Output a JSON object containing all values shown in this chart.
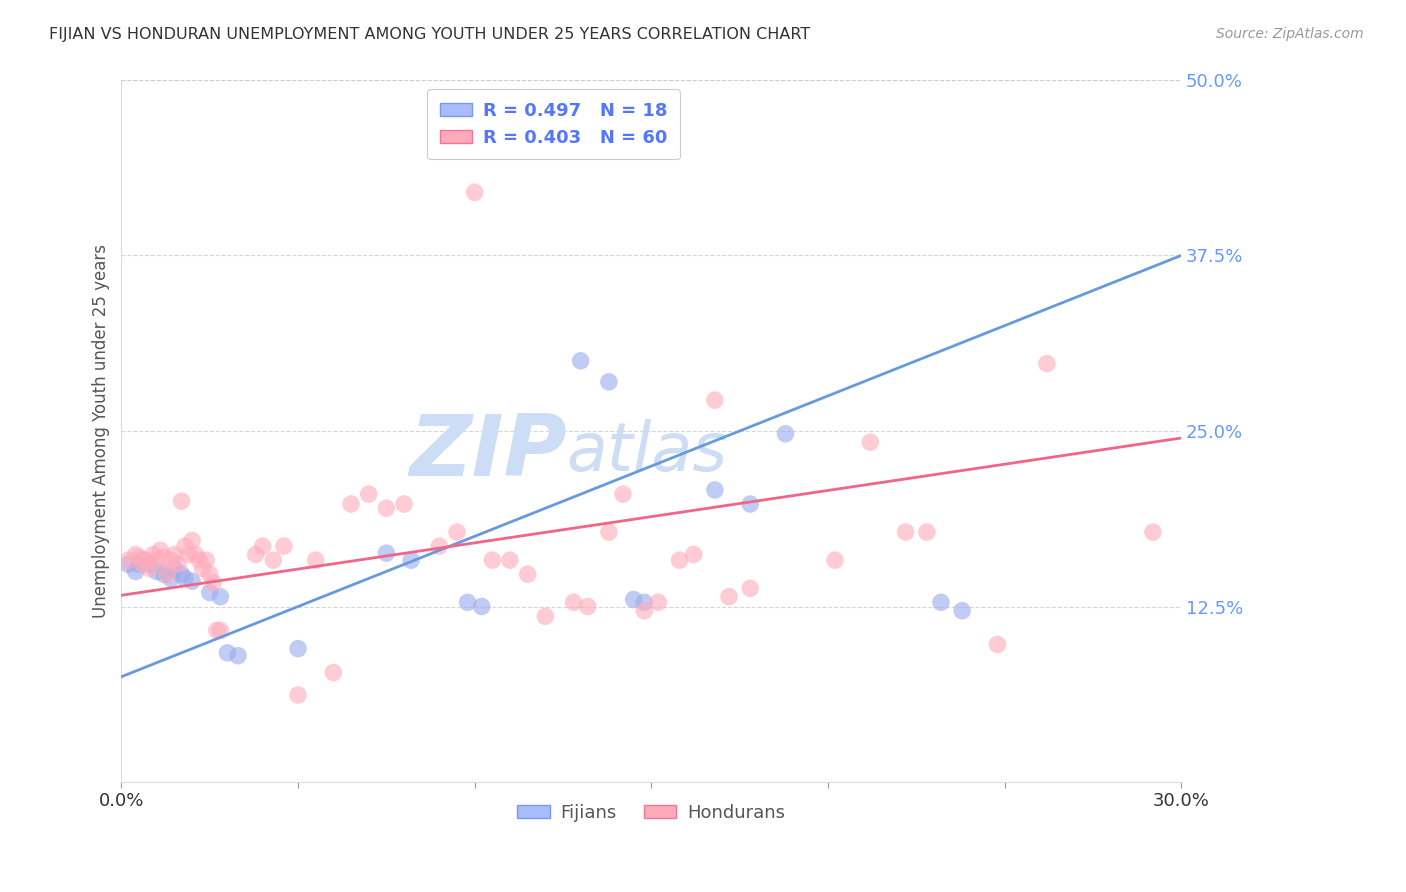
{
  "title": "FIJIAN VS HONDURAN UNEMPLOYMENT AMONG YOUTH UNDER 25 YEARS CORRELATION CHART",
  "source": "Source: ZipAtlas.com",
  "ylabel_label": "Unemployment Among Youth under 25 years",
  "xlim": [
    0.0,
    0.3
  ],
  "ylim": [
    0.0,
    0.5
  ],
  "xticks": [
    0.0,
    0.05,
    0.1,
    0.15,
    0.2,
    0.25,
    0.3
  ],
  "yticks": [
    0.0,
    0.125,
    0.25,
    0.375,
    0.5
  ],
  "xtick_labels": [
    "0.0%",
    "",
    "",
    "",
    "",
    "",
    "30.0%"
  ],
  "ytick_labels": [
    "",
    "12.5%",
    "25.0%",
    "37.5%",
    "50.0%"
  ],
  "fijians_color": "#99aaee",
  "hondurans_color": "#ffaabb",
  "fijians_scatter": [
    [
      0.002,
      0.155
    ],
    [
      0.004,
      0.15
    ],
    [
      0.005,
      0.155
    ],
    [
      0.006,
      0.158
    ],
    [
      0.008,
      0.155
    ],
    [
      0.01,
      0.15
    ],
    [
      0.012,
      0.148
    ],
    [
      0.014,
      0.145
    ],
    [
      0.015,
      0.152
    ],
    [
      0.017,
      0.148
    ],
    [
      0.018,
      0.145
    ],
    [
      0.02,
      0.143
    ],
    [
      0.025,
      0.135
    ],
    [
      0.028,
      0.132
    ],
    [
      0.03,
      0.092
    ],
    [
      0.033,
      0.09
    ],
    [
      0.05,
      0.095
    ],
    [
      0.075,
      0.163
    ],
    [
      0.082,
      0.158
    ],
    [
      0.098,
      0.128
    ],
    [
      0.102,
      0.125
    ],
    [
      0.13,
      0.3
    ],
    [
      0.138,
      0.285
    ],
    [
      0.145,
      0.13
    ],
    [
      0.148,
      0.128
    ],
    [
      0.168,
      0.208
    ],
    [
      0.178,
      0.198
    ],
    [
      0.188,
      0.248
    ],
    [
      0.232,
      0.128
    ],
    [
      0.238,
      0.122
    ]
  ],
  "hondurans_scatter": [
    [
      0.002,
      0.158
    ],
    [
      0.004,
      0.162
    ],
    [
      0.005,
      0.16
    ],
    [
      0.006,
      0.155
    ],
    [
      0.007,
      0.158
    ],
    [
      0.008,
      0.152
    ],
    [
      0.009,
      0.162
    ],
    [
      0.01,
      0.158
    ],
    [
      0.011,
      0.165
    ],
    [
      0.012,
      0.16
    ],
    [
      0.013,
      0.148
    ],
    [
      0.014,
      0.158
    ],
    [
      0.015,
      0.162
    ],
    [
      0.016,
      0.155
    ],
    [
      0.017,
      0.2
    ],
    [
      0.018,
      0.168
    ],
    [
      0.019,
      0.162
    ],
    [
      0.02,
      0.172
    ],
    [
      0.021,
      0.162
    ],
    [
      0.022,
      0.158
    ],
    [
      0.023,
      0.152
    ],
    [
      0.024,
      0.158
    ],
    [
      0.025,
      0.148
    ],
    [
      0.026,
      0.142
    ],
    [
      0.027,
      0.108
    ],
    [
      0.028,
      0.108
    ],
    [
      0.038,
      0.162
    ],
    [
      0.04,
      0.168
    ],
    [
      0.043,
      0.158
    ],
    [
      0.046,
      0.168
    ],
    [
      0.05,
      0.062
    ],
    [
      0.055,
      0.158
    ],
    [
      0.06,
      0.078
    ],
    [
      0.065,
      0.198
    ],
    [
      0.07,
      0.205
    ],
    [
      0.075,
      0.195
    ],
    [
      0.08,
      0.198
    ],
    [
      0.09,
      0.168
    ],
    [
      0.095,
      0.178
    ],
    [
      0.1,
      0.42
    ],
    [
      0.105,
      0.158
    ],
    [
      0.11,
      0.158
    ],
    [
      0.115,
      0.148
    ],
    [
      0.12,
      0.118
    ],
    [
      0.128,
      0.128
    ],
    [
      0.132,
      0.125
    ],
    [
      0.138,
      0.178
    ],
    [
      0.142,
      0.205
    ],
    [
      0.148,
      0.122
    ],
    [
      0.152,
      0.128
    ],
    [
      0.158,
      0.158
    ],
    [
      0.162,
      0.162
    ],
    [
      0.168,
      0.272
    ],
    [
      0.172,
      0.132
    ],
    [
      0.178,
      0.138
    ],
    [
      0.202,
      0.158
    ],
    [
      0.212,
      0.242
    ],
    [
      0.222,
      0.178
    ],
    [
      0.228,
      0.178
    ],
    [
      0.248,
      0.098
    ],
    [
      0.262,
      0.298
    ],
    [
      0.292,
      0.178
    ]
  ],
  "fijians_trendline_x": [
    0.0,
    0.3
  ],
  "fijians_trendline_y": [
    0.075,
    0.375
  ],
  "hondurans_trendline_x": [
    0.0,
    0.3
  ],
  "hondurans_trendline_y": [
    0.133,
    0.245
  ],
  "background_color": "#ffffff",
  "grid_color": "#cccccc",
  "title_color": "#333333",
  "ytick_color": "#6699ff",
  "xtick_color": "#333333",
  "watermark_zip": "ZIP",
  "watermark_atlas": "atlas",
  "watermark_color": "#ccddf5",
  "source_color": "#999999"
}
